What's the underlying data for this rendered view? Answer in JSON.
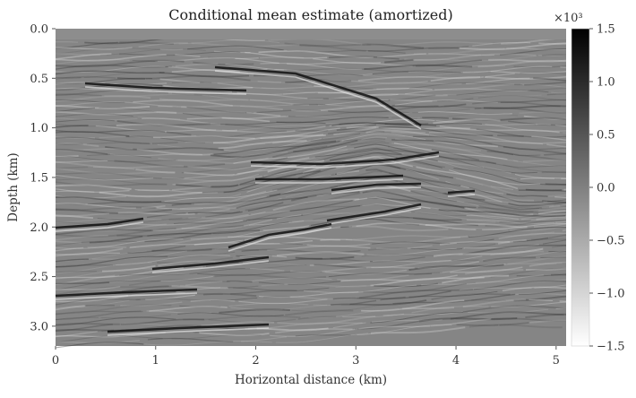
{
  "chart_data": {
    "type": "heatmap",
    "title": "Conditional mean estimate (amortized)",
    "xlabel": "Horizontal distance (km)",
    "ylabel": "Depth (km)",
    "xlim": [
      0,
      5.1
    ],
    "ylim": [
      3.2,
      0.0
    ],
    "y_inverted": true,
    "grid": false,
    "colormap": "gray_r",
    "x_ticks": [
      0,
      1,
      2,
      3,
      4,
      5
    ],
    "x_tick_labels": [
      "0",
      "1",
      "2",
      "3",
      "4",
      "5"
    ],
    "y_ticks": [
      0.0,
      0.5,
      1.0,
      1.5,
      2.0,
      2.5,
      3.0
    ],
    "y_tick_labels": [
      "0.0",
      "0.5",
      "1.0",
      "1.5",
      "2.0",
      "2.5",
      "3.0"
    ],
    "colorbar": {
      "range": [
        -1.5,
        1.5
      ],
      "scale_label": "×10³",
      "ticks": [
        1.5,
        1.0,
        0.5,
        0.0,
        -0.5,
        -1.0,
        -1.5
      ],
      "tick_labels": [
        "1.5",
        "1.0",
        "0.5",
        "0.0",
        "−0.5",
        "−1.0",
        "−1.5"
      ]
    }
  }
}
